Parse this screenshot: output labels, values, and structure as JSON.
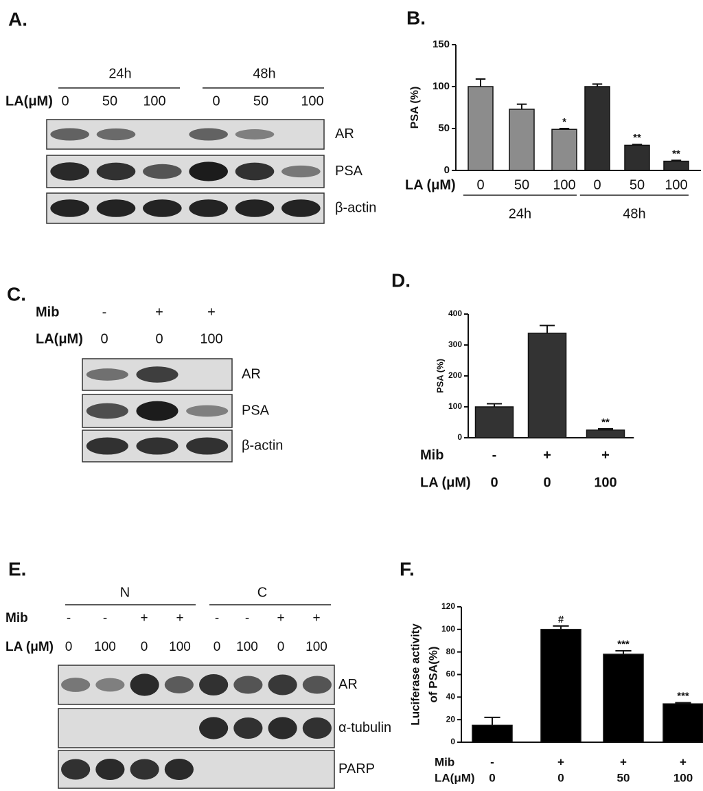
{
  "panels": [
    {
      "label": "A.",
      "groups": [
        "24h",
        "48h"
      ],
      "rows": [
        {
          "label": "LA(μM)",
          "values": [
            "0",
            "50",
            "100",
            "0",
            "50",
            "100"
          ]
        }
      ],
      "blots": [
        "AR",
        "PSA",
        "β-actin"
      ]
    },
    {
      "label": "C.",
      "rows": [
        {
          "label": "Mib",
          "values": [
            "-",
            "+",
            "+"
          ]
        },
        {
          "label": "LA(μM)",
          "values": [
            "0",
            "0",
            "100"
          ]
        }
      ],
      "blots": [
        "AR",
        "PSA",
        "β-actin"
      ]
    },
    {
      "label": "E.",
      "groups": [
        "N",
        "C"
      ],
      "rows": [
        {
          "label": "Mib",
          "values": [
            "-",
            "-",
            "+",
            "+",
            "-",
            "-",
            "+",
            "+"
          ]
        },
        {
          "label": "LA (μM)",
          "values": [
            "0",
            "100",
            "0",
            "100",
            "0",
            "100",
            "0",
            "100"
          ]
        }
      ],
      "blots": [
        "AR",
        "α-tubulin",
        "PARP"
      ]
    }
  ],
  "chart_data": [
    {
      "type": "bar",
      "label": "B.",
      "y_label": "PSA (%)",
      "x_label": "LA (μM)",
      "categories": [
        "0",
        "50",
        "100"
      ],
      "series": [
        {
          "name": "24h",
          "color": "#8c8c8c",
          "values": [
            100,
            73,
            49
          ],
          "errors": [
            9,
            6,
            1
          ],
          "annotations": [
            null,
            null,
            "*"
          ]
        },
        {
          "name": "48h",
          "color": "#2e2e2e",
          "values": [
            100,
            30,
            11
          ],
          "errors": [
            3,
            1,
            1
          ],
          "annotations": [
            null,
            "**",
            "**"
          ]
        }
      ],
      "ylim": [
        0,
        150
      ],
      "yticks": [
        0,
        50,
        100,
        150
      ]
    },
    {
      "type": "bar",
      "label": "D.",
      "y_label": "PSA (%)",
      "rows": [
        {
          "label": "Mib",
          "values": [
            "-",
            "+",
            "+"
          ]
        },
        {
          "label": "LA (μM)",
          "values": [
            "0",
            "0",
            "100"
          ]
        }
      ],
      "values": [
        100,
        338,
        25
      ],
      "errors": [
        10,
        25,
        4
      ],
      "annotations": [
        null,
        null,
        "**"
      ],
      "color": "#333333",
      "ylim": [
        0,
        400
      ],
      "yticks": [
        0,
        100,
        200,
        300,
        400
      ]
    },
    {
      "type": "bar",
      "label": "F.",
      "y_label": [
        "Luciferase activity",
        "of PSA(%)"
      ],
      "rows": [
        {
          "label": "Mib",
          "values": [
            "-",
            "+",
            "+",
            "+"
          ]
        },
        {
          "label": "LA(μM)",
          "values": [
            "0",
            "0",
            "50",
            "100"
          ]
        }
      ],
      "values": [
        15,
        100,
        78,
        34
      ],
      "errors": [
        7,
        3,
        3,
        1
      ],
      "annotations": [
        null,
        "#",
        "***",
        "***"
      ],
      "color": "#000000",
      "ylim": [
        0,
        120
      ],
      "yticks": [
        0,
        20,
        40,
        60,
        80,
        100,
        120
      ]
    }
  ]
}
